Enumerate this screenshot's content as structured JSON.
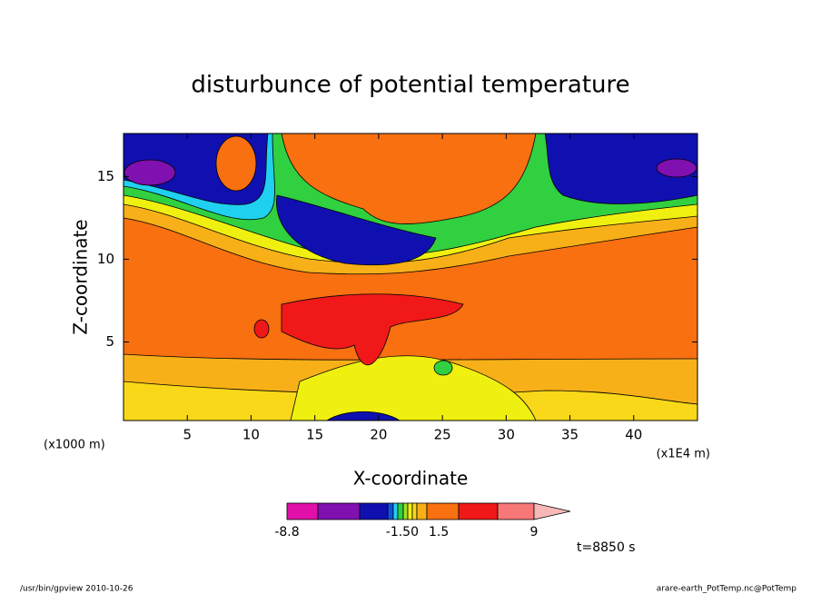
{
  "chart_data": {
    "type": "contour",
    "title": "disturbunce of potential temperature",
    "x_label": "X-coordinate",
    "y_label": "Z-coordinate",
    "x_unit": "(x1000 m)",
    "x_unit_right": "(x1E4 m)",
    "xlim": [
      0,
      45
    ],
    "xticks": [
      5,
      10,
      15,
      20,
      25,
      30,
      35,
      40
    ],
    "ylim": [
      0.25,
      17.6
    ],
    "yticks": [
      5,
      10,
      15
    ],
    "colorbar": {
      "colors": [
        "#e010a8",
        "#8010b0",
        "#1010b0",
        "#1050e0",
        "#20d0f0",
        "#30d040",
        "#a0e020",
        "#f0f010",
        "#f8d818",
        "#f8b018",
        "#f87010",
        "#f01818",
        "#f87878",
        "#f8b8b8"
      ],
      "ticks": [
        -8.8,
        {
          "value": -1.5,
          "label": "-1.50"
        },
        1.5,
        9
      ]
    },
    "time_label": "t=8850 s",
    "footer_left": "/usr/bin/gpview  2010-10-26",
    "footer_right": "arare-earth_PotTemp.nc@PotTemp"
  }
}
